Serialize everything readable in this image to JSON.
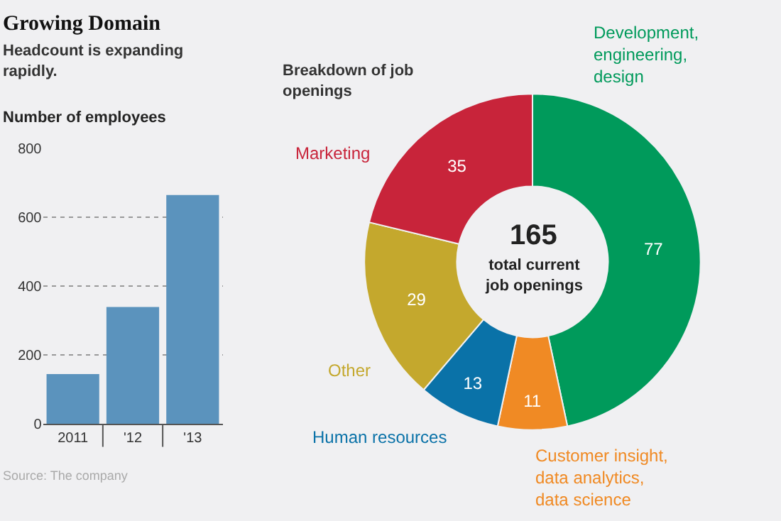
{
  "chart_data": [
    {
      "type": "bar",
      "title": "Growing Domain",
      "subtitle": "Headcount is expanding rapidly.",
      "ylabel": "Number of employees",
      "categories": [
        "2011",
        "'12",
        "'13"
      ],
      "values": [
        145,
        340,
        665
      ],
      "color": "#5b93bd",
      "ylim": [
        0,
        800
      ],
      "yticks": [
        0,
        200,
        400,
        600,
        800
      ],
      "grid": "y",
      "annotations": [
        "Source: The company"
      ]
    },
    {
      "type": "donut",
      "title": "Breakdown of job openings",
      "categories": [
        "Development, engineering, design",
        "Customer insight, data analytics, data science",
        "Human resources",
        "Other",
        "Marketing"
      ],
      "values": [
        77,
        11,
        13,
        29,
        35
      ],
      "colors": [
        "#009a5b",
        "#f08a24",
        "#0a72a8",
        "#c4a82d",
        "#c8243a"
      ],
      "data_labels": true,
      "annotations": [
        "165",
        "total current job openings"
      ]
    }
  ]
}
